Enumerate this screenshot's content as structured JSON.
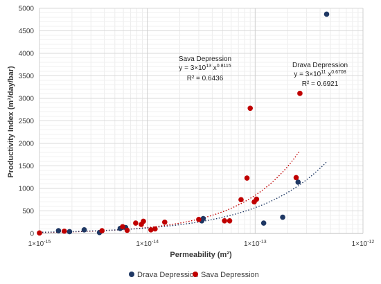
{
  "chart_data": {
    "type": "scatter",
    "xscale": "log",
    "xlim": [
      1e-15,
      1e-12
    ],
    "ylim": [
      0,
      5000
    ],
    "xlabel": "Permeability (m²)",
    "ylabel": "Productivity Index (m³/day/bar)",
    "xticks": [
      {
        "value": 1e-15,
        "base": "1×10",
        "exp": "-15"
      },
      {
        "value": 1e-14,
        "base": "1×10",
        "exp": "-14"
      },
      {
        "value": 1e-13,
        "base": "1×10",
        "exp": "-13"
      },
      {
        "value": 1e-12,
        "base": "1×10",
        "exp": "-12"
      }
    ],
    "yticks": [
      0,
      500,
      1000,
      1500,
      2000,
      2500,
      3000,
      3500,
      4000,
      4500,
      5000
    ],
    "grid": true,
    "legend_position": "bottom",
    "series": [
      {
        "name": "Drava Depression",
        "color": "#1f3864",
        "points": [
          [
            1.5e-15,
            60
          ],
          [
            1.9e-15,
            40
          ],
          [
            2.6e-15,
            80
          ],
          [
            3.6e-15,
            20
          ],
          [
            5.6e-15,
            110
          ],
          [
            6.3e-15,
            130
          ],
          [
            3.2e-14,
            280
          ],
          [
            3.3e-14,
            330
          ],
          [
            1.2e-13,
            230
          ],
          [
            1.8e-13,
            360
          ],
          [
            2.5e-13,
            1140
          ],
          [
            4.6e-13,
            4870
          ]
        ]
      },
      {
        "name": "Sava Depression",
        "color": "#c00000",
        "points": [
          [
            1e-15,
            10
          ],
          [
            1.7e-15,
            50
          ],
          [
            3.8e-15,
            60
          ],
          [
            5.9e-15,
            150
          ],
          [
            6.5e-15,
            70
          ],
          [
            7.8e-15,
            230
          ],
          [
            8.8e-15,
            200
          ],
          [
            9.2e-15,
            270
          ],
          [
            1.08e-14,
            80
          ],
          [
            1.18e-14,
            100
          ],
          [
            1.45e-14,
            250
          ],
          [
            3e-14,
            310
          ],
          [
            5.2e-14,
            280
          ],
          [
            5.8e-14,
            280
          ],
          [
            7.4e-14,
            750
          ],
          [
            8.4e-14,
            1230
          ],
          [
            9e-14,
            2780
          ],
          [
            9.8e-14,
            700
          ],
          [
            1.03e-13,
            760
          ],
          [
            2.4e-13,
            1240
          ],
          [
            2.6e-13,
            3110
          ]
        ]
      }
    ],
    "trendlines": [
      {
        "series": "Sava Depression",
        "coef": 30000000000000.0,
        "exp": 0.8115,
        "x_range": [
          1e-15,
          2.6e-13
        ],
        "color": "#c00000"
      },
      {
        "series": "Drava Depression",
        "coef": 300000000000.0,
        "exp": 0.6708,
        "x_range": [
          1e-15,
          4.6e-13
        ],
        "color": "#1f3864"
      }
    ],
    "annotations": [
      {
        "id": "sava",
        "line1": "Sava Depression",
        "eq_prefix": "y = 3×10",
        "eq_coef_exp": "13",
        "eq_mid": " x",
        "eq_x_exp": "0.8115",
        "r2": "R² = 0.6436"
      },
      {
        "id": "drava",
        "line1": "Drava Depression",
        "eq_prefix": "y = 3×10",
        "eq_coef_exp": "11",
        "eq_mid": " x",
        "eq_x_exp": "0.6708",
        "r2": "R² = 0.6921"
      }
    ]
  }
}
